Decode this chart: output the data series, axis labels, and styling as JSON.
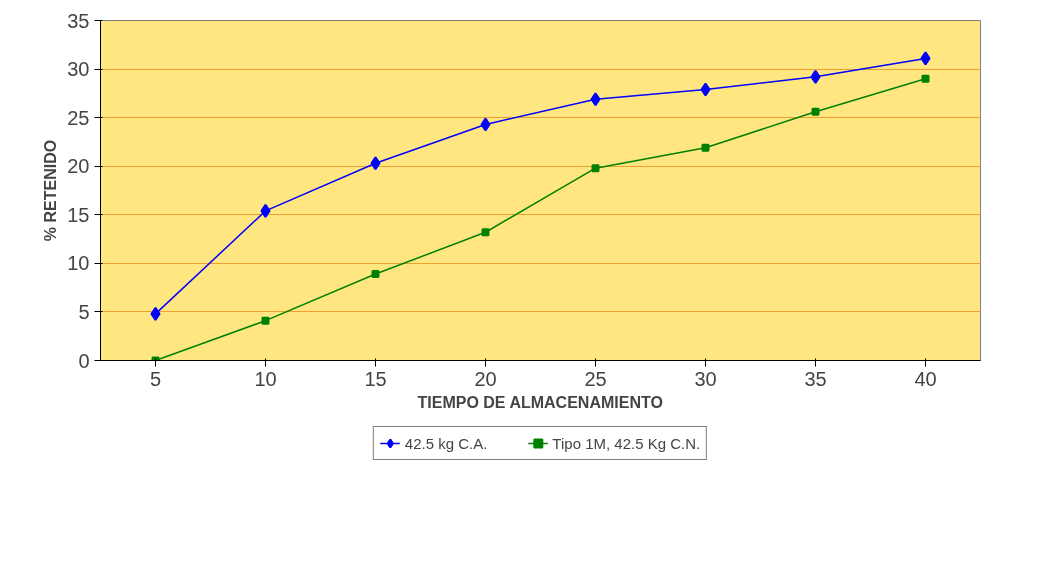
{
  "chart_data": {
    "type": "line",
    "xlabel": "TIEMPO DE ALMACENAMIENTO",
    "ylabel": "% RETENIDO",
    "categories": [
      "5",
      "10",
      "15",
      "20",
      "25",
      "30",
      "35",
      "40"
    ],
    "series": [
      {
        "name": "42.5 kg C.A.",
        "color": "#0000ff",
        "marker": "diamond",
        "values": [
          4.8,
          15.4,
          20.3,
          24.3,
          26.9,
          27.9,
          29.2,
          31.1
        ]
      },
      {
        "name": "Tipo 1M, 42.5 Kg C.N.",
        "color": "#008000",
        "marker": "square",
        "values": [
          0,
          4.1,
          8.9,
          13.2,
          19.8,
          21.9,
          25.6,
          29.0
        ]
      }
    ],
    "ylim": [
      0,
      35
    ],
    "yticks": [
      0,
      5,
      10,
      15,
      20,
      25,
      30,
      35
    ],
    "grid": "y",
    "legend": "bottom"
  }
}
